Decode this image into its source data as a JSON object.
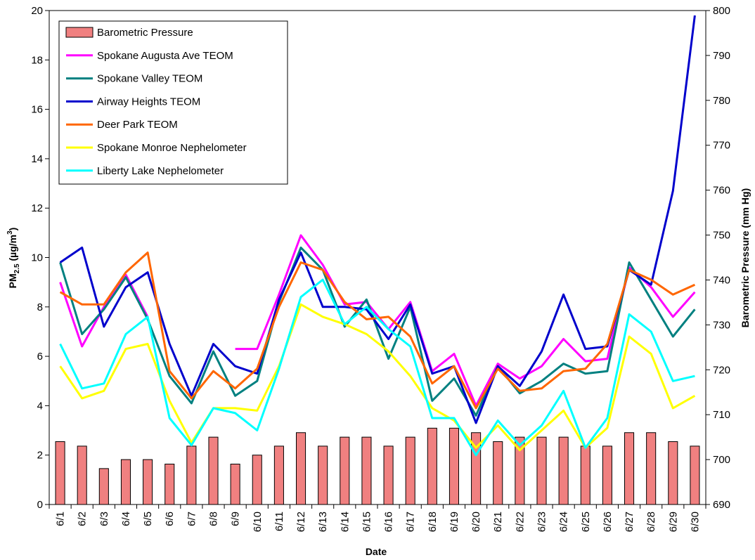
{
  "chart_data": {
    "type": "bar+line",
    "title": "",
    "xlabel": "Date",
    "ylabel_left": {
      "main": "PM",
      "sub": "2.5",
      "rest": " (µg/m",
      "sup": "3",
      "end": ")"
    },
    "ylabel_right": "Barometric Pressure (mm Hg)",
    "ylim_left": [
      0,
      20
    ],
    "ylim_right": [
      690,
      800
    ],
    "yticks_left": [
      "0",
      "2",
      "4",
      "6",
      "8",
      "10",
      "12",
      "14",
      "16",
      "18",
      "20"
    ],
    "yticks_right": [
      "690",
      "700",
      "710",
      "720",
      "730",
      "740",
      "750",
      "760",
      "770",
      "780",
      "790",
      "800"
    ],
    "grid": false,
    "legend_position": "top-left",
    "categories": [
      "6/1",
      "6/2",
      "6/3",
      "6/4",
      "6/5",
      "6/6",
      "6/7",
      "6/8",
      "6/9",
      "6/10",
      "6/11",
      "6/12",
      "6/13",
      "6/14",
      "6/15",
      "6/16",
      "6/17",
      "6/18",
      "6/19",
      "6/20",
      "6/21",
      "6/22",
      "6/23",
      "6/24",
      "6/25",
      "6/26",
      "6/27",
      "6/28",
      "6/29",
      "6/30"
    ],
    "bar_series": {
      "name": "Barometric Pressure",
      "axis": "right",
      "color": "#F08080",
      "values": [
        704,
        703,
        698,
        700,
        700,
        699,
        703,
        705,
        699,
        701,
        703,
        706,
        703,
        705,
        705,
        703,
        705,
        707,
        707,
        706,
        704,
        705,
        705,
        705,
        703,
        703,
        706,
        706,
        704,
        703
      ]
    },
    "line_series": [
      {
        "name": "Spokane Augusta Ave TEOM",
        "color": "#FF00FF",
        "values": [
          9.0,
          6.4,
          8.0,
          9.3,
          7.6,
          null,
          null,
          null,
          6.3,
          6.3,
          8.5,
          10.9,
          9.7,
          8.1,
          8.2,
          7.1,
          8.2,
          5.4,
          6.1,
          4.0,
          5.7,
          5.1,
          5.6,
          6.7,
          5.8,
          5.9,
          9.6,
          8.8,
          7.6,
          8.6
        ]
      },
      {
        "name": "Spokane Valley TEOM",
        "color": "#008080",
        "values": [
          9.8,
          6.9,
          7.9,
          9.2,
          7.5,
          5.2,
          4.1,
          6.2,
          4.4,
          5.0,
          8.2,
          10.4,
          9.5,
          7.2,
          8.3,
          5.9,
          8.0,
          4.2,
          5.1,
          3.6,
          5.6,
          4.5,
          5.0,
          5.7,
          5.3,
          5.4,
          9.8,
          8.3,
          6.8,
          7.9
        ]
      },
      {
        "name": "Airway Heights TEOM",
        "color": "#0000CC",
        "values": [
          9.8,
          10.4,
          7.2,
          8.8,
          9.4,
          6.5,
          4.4,
          6.5,
          5.6,
          5.3,
          8.3,
          10.2,
          8.0,
          8.0,
          7.9,
          6.7,
          8.1,
          5.3,
          5.6,
          3.3,
          5.6,
          4.8,
          6.2,
          8.5,
          6.3,
          6.4,
          9.5,
          8.9,
          12.7,
          19.8
        ]
      },
      {
        "name": "Deer Park TEOM",
        "color": "#FF6600",
        "values": [
          8.6,
          8.1,
          8.1,
          9.4,
          10.2,
          5.4,
          4.3,
          5.4,
          4.7,
          5.5,
          8.0,
          9.8,
          9.5,
          8.2,
          7.5,
          7.6,
          6.8,
          4.9,
          5.6,
          3.9,
          5.5,
          4.6,
          4.7,
          5.4,
          5.5,
          6.5,
          9.5,
          9.1,
          8.5,
          8.9
        ]
      },
      {
        "name": "Spokane Monroe Nephelometer",
        "color": "#FFFF00",
        "values": [
          5.6,
          4.3,
          4.6,
          6.3,
          6.5,
          4.2,
          2.5,
          3.9,
          3.9,
          3.8,
          5.6,
          8.1,
          7.6,
          7.3,
          6.9,
          6.2,
          5.2,
          3.9,
          3.4,
          2.3,
          3.2,
          2.2,
          3.0,
          3.8,
          2.3,
          3.1,
          6.8,
          6.1,
          3.9,
          4.4
        ]
      },
      {
        "name": "Liberty Lake Nephelometer",
        "color": "#00FFFF",
        "values": [
          6.5,
          4.7,
          4.9,
          6.9,
          7.6,
          3.5,
          2.4,
          3.9,
          3.7,
          3.0,
          5.5,
          8.4,
          9.1,
          7.3,
          8.0,
          7.1,
          6.4,
          3.5,
          3.5,
          2.0,
          3.4,
          2.4,
          3.2,
          4.6,
          2.3,
          3.5,
          7.7,
          7.0,
          5.0,
          5.2
        ]
      }
    ]
  }
}
